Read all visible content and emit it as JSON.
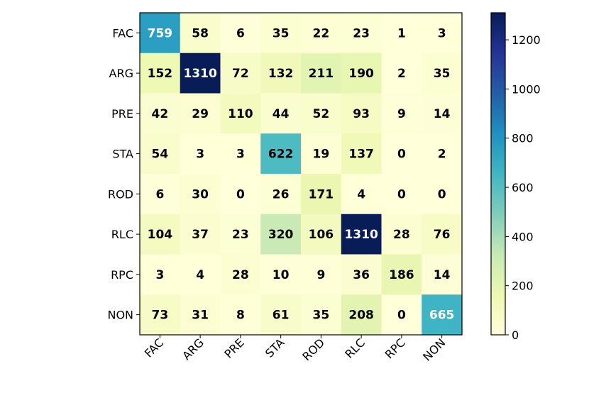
{
  "chart_data": {
    "type": "heatmap",
    "title": "",
    "xlabel": "",
    "ylabel": "",
    "row_labels": [
      "FAC",
      "ARG",
      "PRE",
      "STA",
      "ROD",
      "RLC",
      "RPC",
      "NON"
    ],
    "col_labels": [
      "FAC",
      "ARG",
      "PRE",
      "STA",
      "ROD",
      "RLC",
      "RPC",
      "NON"
    ],
    "values": [
      [
        759,
        58,
        6,
        35,
        22,
        23,
        1,
        3
      ],
      [
        152,
        1310,
        72,
        132,
        211,
        190,
        2,
        35
      ],
      [
        42,
        29,
        110,
        44,
        52,
        93,
        9,
        14
      ],
      [
        54,
        3,
        3,
        622,
        19,
        137,
        0,
        2
      ],
      [
        6,
        30,
        0,
        26,
        171,
        4,
        0,
        0
      ],
      [
        104,
        37,
        23,
        320,
        106,
        1310,
        28,
        76
      ],
      [
        3,
        4,
        28,
        10,
        9,
        36,
        186,
        14
      ],
      [
        73,
        31,
        8,
        61,
        35,
        208,
        0,
        665
      ]
    ],
    "colormap": "YlGnBu",
    "vmin": 0,
    "vmax": 1310,
    "colorbar_ticks": [
      0,
      200,
      400,
      600,
      800,
      1000,
      1200
    ],
    "legend": "colorbar-right"
  }
}
